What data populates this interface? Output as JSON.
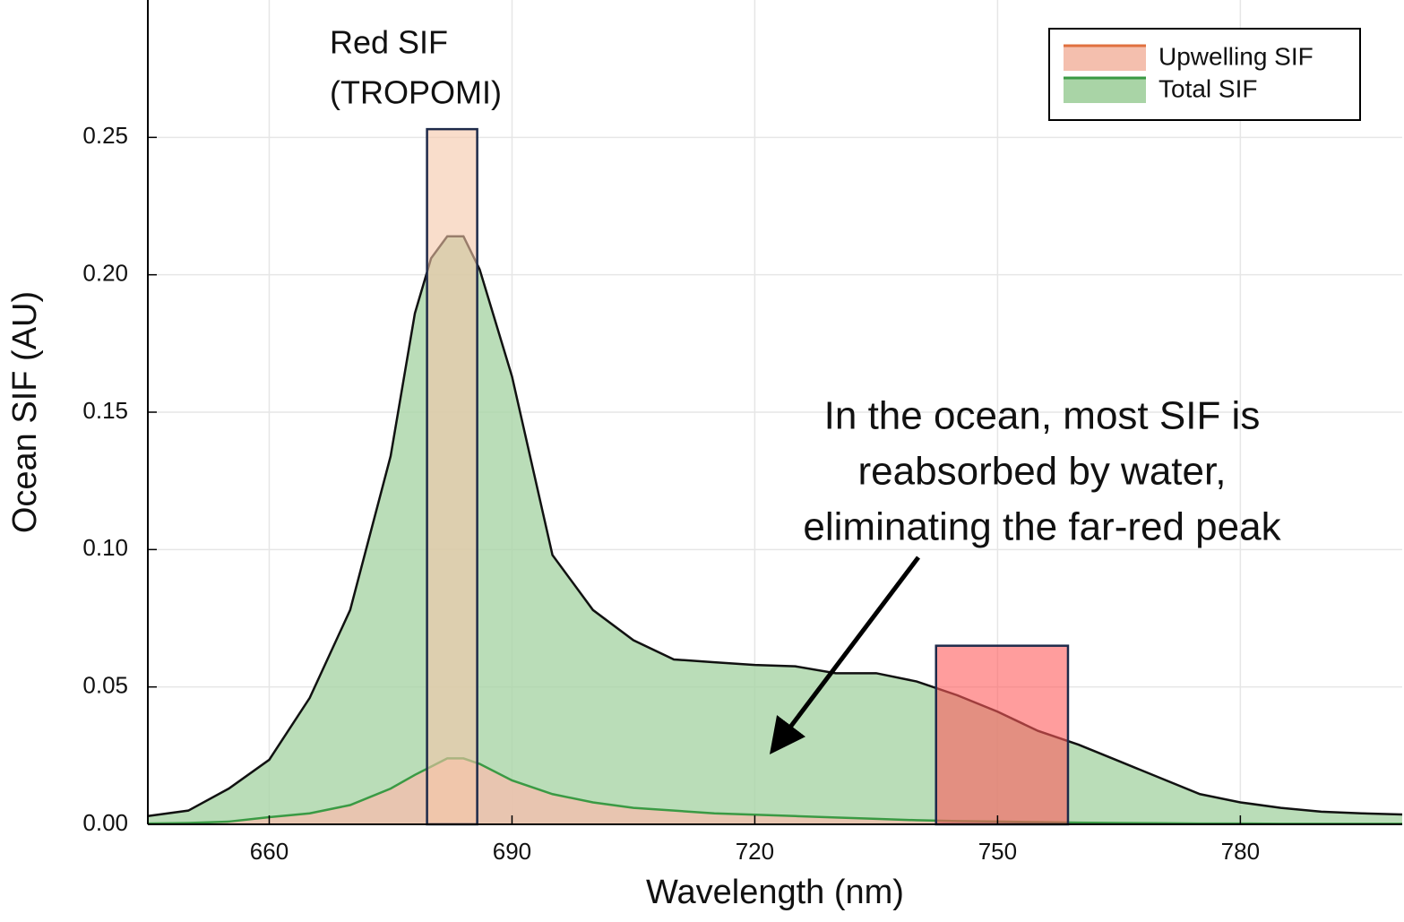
{
  "chart_data": {
    "type": "area",
    "x_label": "Wavelength (nm)",
    "y_label": "Ocean SIF (AU)",
    "xlim": [
      645,
      800
    ],
    "ylim": [
      0,
      0.3
    ],
    "xticks": [
      660,
      690,
      720,
      750,
      780
    ],
    "yticks": [
      {
        "value": 0,
        "label": "0.00"
      },
      0.05,
      {
        "value": 0.1,
        "label": "0.10"
      },
      0.15,
      {
        "value": 0.2,
        "label": "0.20"
      },
      0.25
    ],
    "grid": true,
    "legend": "top-right",
    "x": [
      645,
      650,
      655,
      660,
      665,
      670,
      675,
      678,
      680,
      682,
      684,
      686,
      690,
      695,
      700,
      705,
      710,
      715,
      720,
      725,
      730,
      735,
      740,
      745,
      750,
      755,
      760,
      765,
      770,
      775,
      780,
      785,
      790,
      795,
      800
    ],
    "series": [
      {
        "name": "Total SIF",
        "color": "#a9d4a6",
        "line_color": "#111111",
        "legend_line_color": "#3a9a44",
        "values": [
          0.003,
          0.005,
          0.013,
          0.0235,
          0.046,
          0.078,
          0.134,
          0.186,
          0.206,
          0.214,
          0.214,
          0.202,
          0.163,
          0.098,
          0.078,
          0.067,
          0.06,
          0.059,
          0.058,
          0.0575,
          0.055,
          0.055,
          0.052,
          0.047,
          0.041,
          0.034,
          0.029,
          0.023,
          0.017,
          0.011,
          0.008,
          0.006,
          0.0046,
          0.004,
          0.0036
        ]
      },
      {
        "name": "Upwelling SIF",
        "color": "#f4bfae",
        "line_color": "#3a9a44",
        "legend_line_color": "#e0703f",
        "values": [
          0.0003,
          0.0005,
          0.001,
          0.0026,
          0.004,
          0.007,
          0.013,
          0.018,
          0.021,
          0.024,
          0.024,
          0.022,
          0.016,
          0.011,
          0.008,
          0.006,
          0.005,
          0.004,
          0.0035,
          0.003,
          0.0025,
          0.002,
          0.0015,
          0.0012,
          0.001,
          0.0008,
          0.0006,
          0.0005,
          0.0004,
          0.0003,
          0.0003,
          0.0002,
          0.0002,
          0.0002,
          0.0002
        ]
      }
    ],
    "highlights": [
      {
        "xlim": [
          679.5,
          685.7
        ],
        "ylim": [
          0,
          0.253
        ],
        "color": "#f5c7a8",
        "label": [
          "Red SIF",
          "(TROPOMI)"
        ]
      },
      {
        "xlim": [
          742.4,
          758.7
        ],
        "ylim": [
          0,
          0.065
        ],
        "color": "#ff5c5c"
      }
    ],
    "annotation": [
      "In the ocean, most SIF is",
      "reabsorbed by water,",
      "eliminating the far-red peak"
    ]
  }
}
